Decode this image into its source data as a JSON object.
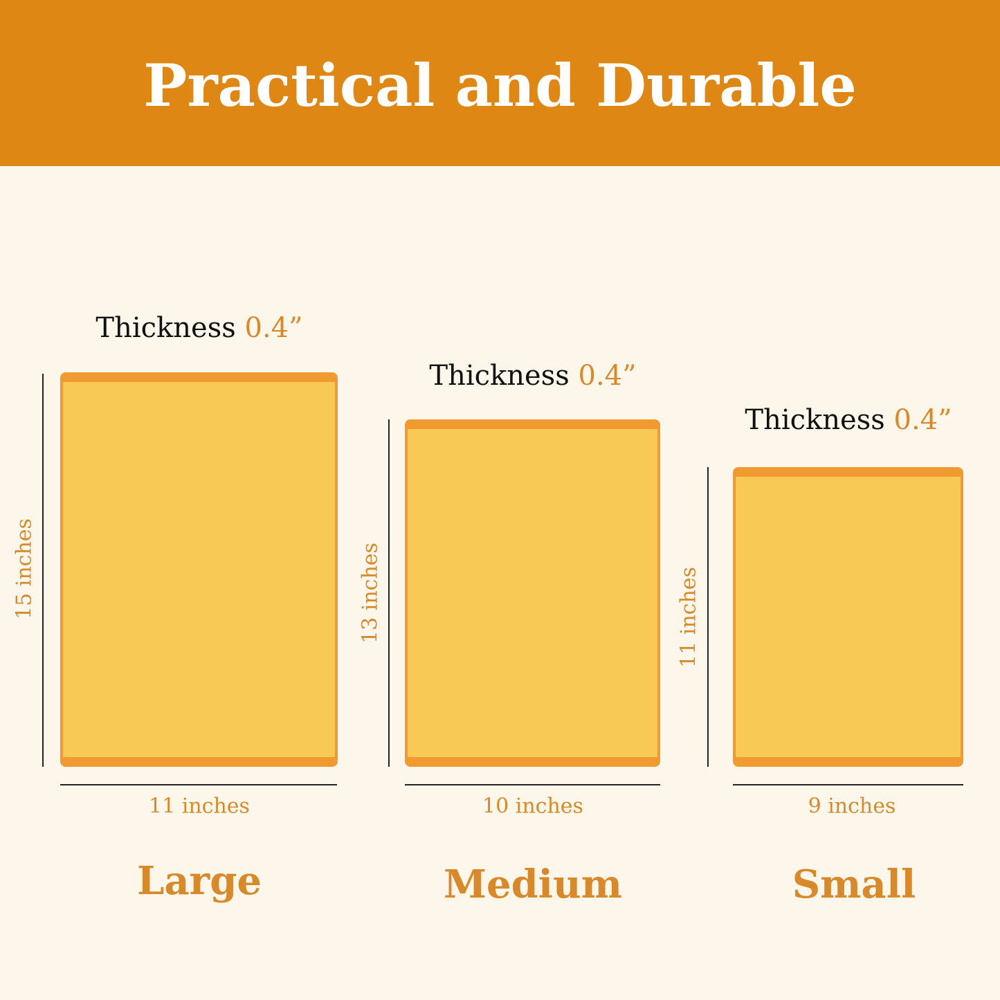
{
  "header": {
    "title": "Practical and Durable"
  },
  "colors": {
    "header": "#df8714",
    "background": "#fdf6ea",
    "board_fill": "#f9c956",
    "board_edge": "#f19a30",
    "accent_text": "#d88a2a"
  },
  "boards": [
    {
      "size": "Large",
      "thickness_label": "Thickness",
      "thickness_value": "0.4”",
      "height": "15 inches",
      "width": "11 inches"
    },
    {
      "size": "Medium",
      "thickness_label": "Thickness",
      "thickness_value": "0.4”",
      "height": "13 inches",
      "width": "10 inches"
    },
    {
      "size": "Small",
      "thickness_label": "Thickness",
      "thickness_value": "0.4”",
      "height": "11 inches",
      "width": "9 inches"
    }
  ]
}
